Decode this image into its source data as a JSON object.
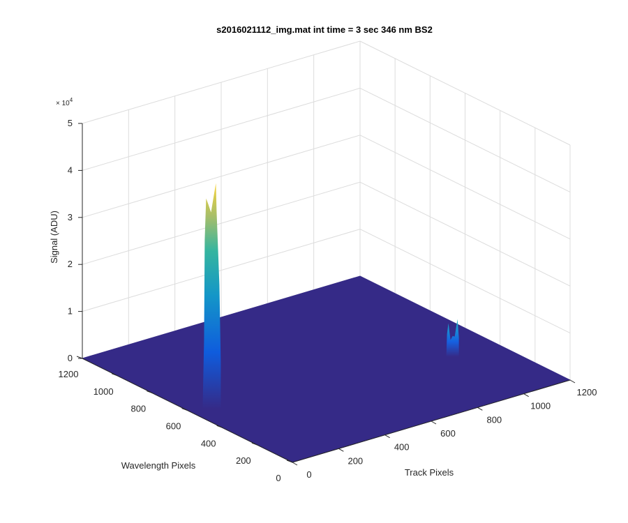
{
  "chart_data": {
    "type": "surface",
    "title": "s2016021112_img.mat int time = 3 sec  346 nm BS2",
    "xlabel": "Track Pixels",
    "ylabel": "Wavelength Pixels",
    "zlabel": "Signal (ADU)",
    "z_multiplier": "× 10",
    "z_exponent": "4",
    "xlim": [
      0,
      1200
    ],
    "ylim": [
      0,
      1200
    ],
    "zlim": [
      0,
      50000
    ],
    "x_ticks": [
      "0",
      "200",
      "400",
      "600",
      "800",
      "1000",
      "1200"
    ],
    "y_ticks": [
      "0",
      "200",
      "400",
      "600",
      "800",
      "1000",
      "1200"
    ],
    "z_ticks": [
      "0",
      "1",
      "2",
      "3",
      "4",
      "5"
    ],
    "grid": true,
    "colormap": "parula",
    "baseline_color": "#352a87",
    "peaks": [
      {
        "track": 75,
        "wavelength": 560,
        "signal": 48000
      },
      {
        "track": 1010,
        "wavelength": 420,
        "signal": 8000
      }
    ]
  }
}
